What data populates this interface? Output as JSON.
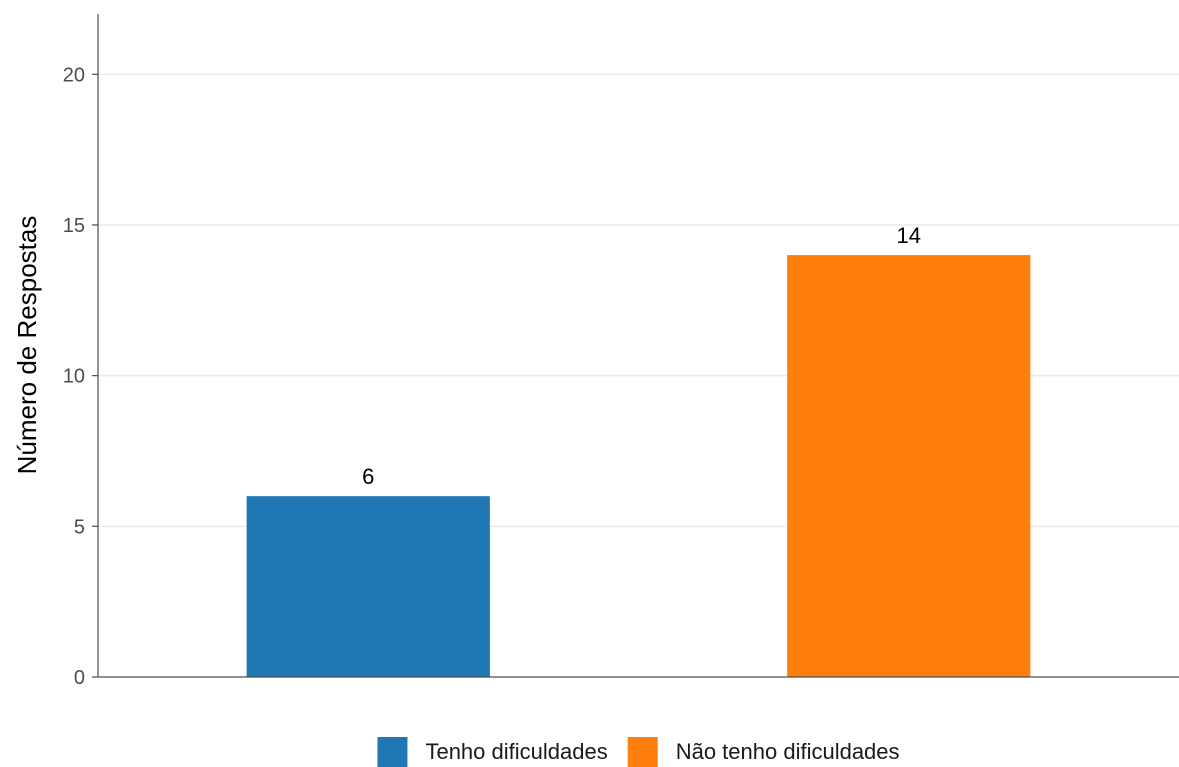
{
  "chart_data": {
    "type": "bar",
    "categories": [
      "Tenho dificuldades",
      "Não tenho dificuldades"
    ],
    "values": [
      6,
      14
    ],
    "colors": [
      "#1f77b4",
      "#ff7f0e"
    ],
    "data_labels": [
      "6",
      "14"
    ],
    "ylabel": "Número de Respostas",
    "xlabel": "",
    "ylim": [
      0,
      22
    ],
    "yticks": [
      0,
      5,
      10,
      15,
      20
    ],
    "ytick_labels": [
      "0",
      "5",
      "10",
      "15",
      "20"
    ],
    "grid": "horizontal",
    "legend": {
      "position": "bottom",
      "entries": [
        "Tenho dificuldades",
        "Não tenho dificuldades"
      ]
    }
  }
}
